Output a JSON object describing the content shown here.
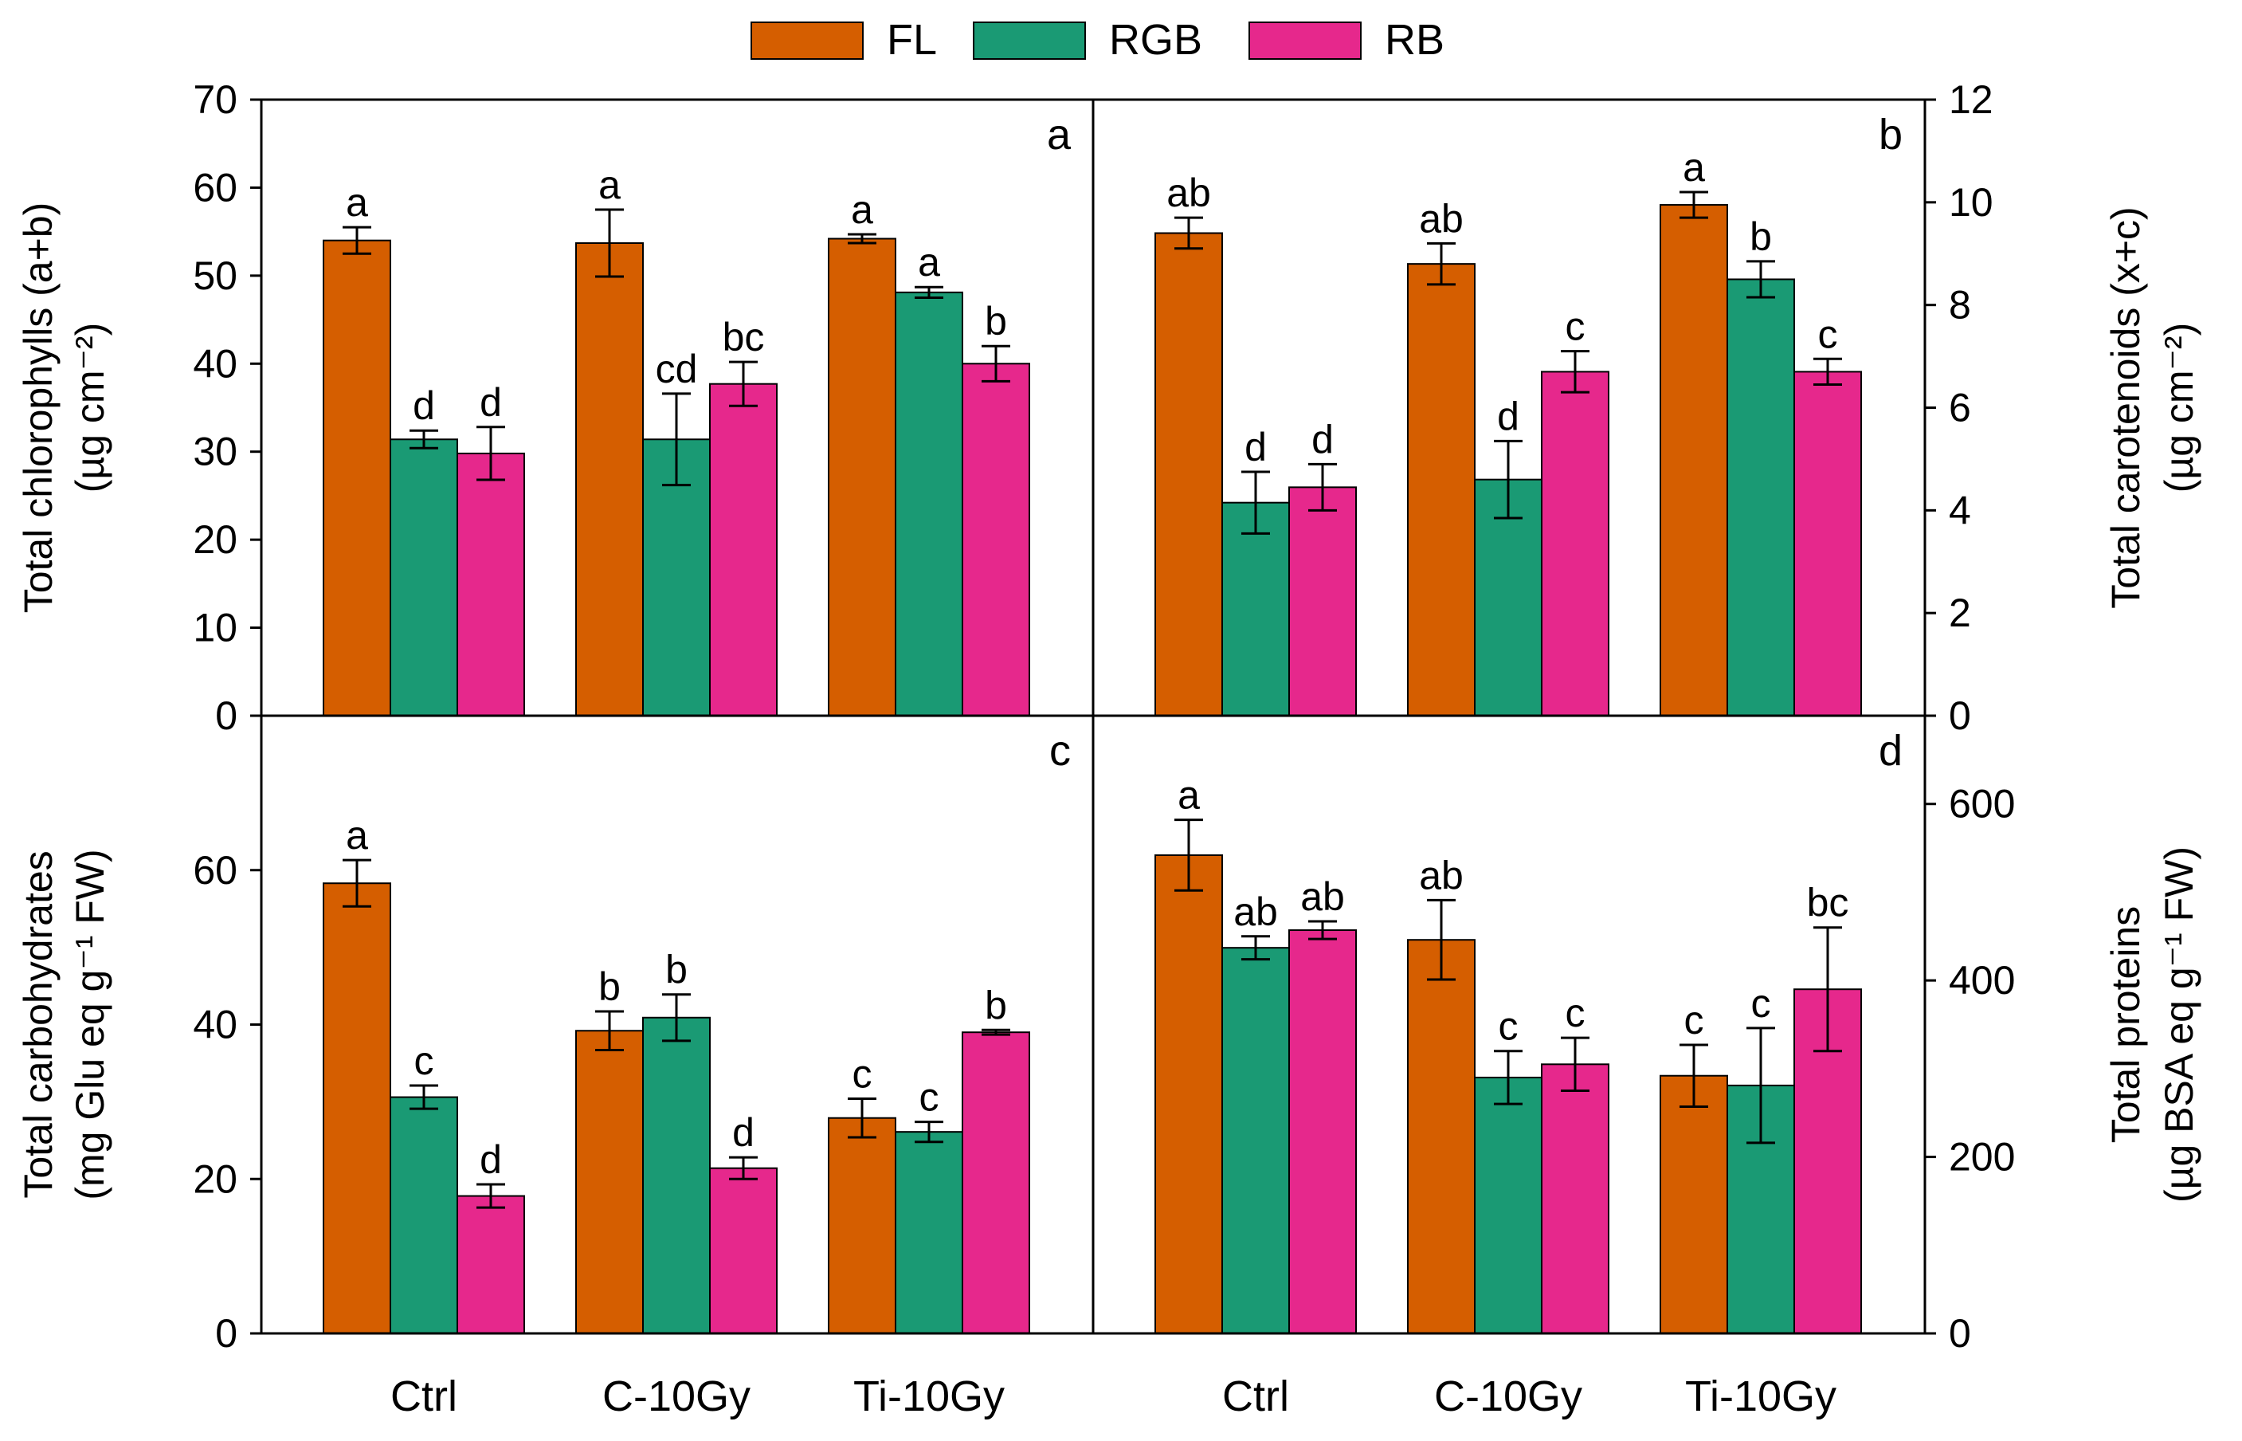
{
  "colors": {
    "FL": "#D55E00",
    "RGB": "#1A9A74",
    "RB": "#E6288C"
  },
  "legend": [
    {
      "key": "FL",
      "label": "FL",
      "color": "#D55E00"
    },
    {
      "key": "RGB",
      "label": "RGB",
      "color": "#1A9A74"
    },
    {
      "key": "RB",
      "label": "RB",
      "color": "#E6288C"
    }
  ],
  "categories": [
    "Ctrl",
    "C-10Gy",
    "Ti-10Gy"
  ],
  "chart_data": [
    {
      "type": "bar",
      "panel": "a",
      "title": "",
      "ylabel_line1": "Total chlorophylls (a+b)",
      "ylabel_line2": "(µg cm⁻²)",
      "ylim": [
        0,
        70
      ],
      "ticks": [
        "0",
        "10",
        "20",
        "30",
        "40",
        "50",
        "60",
        "70"
      ],
      "categories": [
        "Ctrl",
        "C-10Gy",
        "Ti-10Gy"
      ],
      "series": [
        {
          "name": "FL",
          "values": [
            54,
            53.7,
            54.2
          ],
          "errors": [
            1.5,
            3.8,
            0.5
          ],
          "letters": [
            "a",
            "a",
            "a"
          ]
        },
        {
          "name": "RGB",
          "values": [
            31.4,
            31.4,
            48.1
          ],
          "errors": [
            1.0,
            5.2,
            0.6
          ],
          "letters": [
            "d",
            "cd",
            "a"
          ]
        },
        {
          "name": "RB",
          "values": [
            29.8,
            37.7,
            40.0
          ],
          "errors": [
            3.0,
            2.5,
            2.0
          ],
          "letters": [
            "d",
            "bc",
            "b"
          ]
        }
      ]
    },
    {
      "type": "bar",
      "panel": "b",
      "title": "",
      "ylabel_line1": "Total carotenoids (x+c)",
      "ylabel_line2": "(µg cm⁻²)",
      "ylim": [
        0,
        12
      ],
      "ticks": [
        "0",
        "2",
        "4",
        "6",
        "8",
        "10",
        "12"
      ],
      "categories": [
        "Ctrl",
        "C-10Gy",
        "Ti-10Gy"
      ],
      "series": [
        {
          "name": "FL",
          "values": [
            9.4,
            8.8,
            9.95
          ],
          "errors": [
            0.3,
            0.4,
            0.25
          ],
          "letters": [
            "ab",
            "ab",
            "a"
          ]
        },
        {
          "name": "RGB",
          "values": [
            4.15,
            4.6,
            8.5
          ],
          "errors": [
            0.6,
            0.75,
            0.35
          ],
          "letters": [
            "d",
            "d",
            "b"
          ]
        },
        {
          "name": "RB",
          "values": [
            4.45,
            6.7,
            6.7
          ],
          "errors": [
            0.45,
            0.4,
            0.25
          ],
          "letters": [
            "d",
            "c",
            "c"
          ]
        }
      ]
    },
    {
      "type": "bar",
      "panel": "c",
      "title": "",
      "ylabel_line1": "Total carbohydrates",
      "ylabel_line2": "(mg Glu eq g⁻¹ FW)",
      "ylim": [
        0,
        80
      ],
      "ticks": [
        "0",
        "20",
        "40",
        "60"
      ],
      "categories": [
        "Ctrl",
        "C-10Gy",
        "Ti-10Gy"
      ],
      "series": [
        {
          "name": "FL",
          "values": [
            58.3,
            39.2,
            27.9
          ],
          "errors": [
            3.0,
            2.5,
            2.5
          ],
          "letters": [
            "a",
            "b",
            "c"
          ]
        },
        {
          "name": "RGB",
          "values": [
            30.6,
            40.9,
            26.1
          ],
          "errors": [
            1.5,
            3.0,
            1.3
          ],
          "letters": [
            "c",
            "b",
            "c"
          ]
        },
        {
          "name": "RB",
          "values": [
            17.8,
            21.4,
            39.0
          ],
          "errors": [
            1.5,
            1.4,
            0.3
          ],
          "letters": [
            "d",
            "d",
            "b"
          ]
        }
      ]
    },
    {
      "type": "bar",
      "panel": "d",
      "title": "",
      "ylabel_line1": "Total proteins",
      "ylabel_line2": "(µg BSA eq g⁻¹ FW)",
      "ylim": [
        0,
        700
      ],
      "ticks": [
        "0",
        "200",
        "400",
        "600"
      ],
      "categories": [
        "Ctrl",
        "C-10Gy",
        "Ti-10Gy"
      ],
      "series": [
        {
          "name": "FL",
          "values": [
            542,
            446,
            292
          ],
          "errors": [
            40,
            45,
            35
          ],
          "letters": [
            "a",
            "ab",
            "c"
          ]
        },
        {
          "name": "RGB",
          "values": [
            437,
            290,
            281
          ],
          "errors": [
            13,
            30,
            65
          ],
          "letters": [
            "ab",
            "c",
            "c"
          ]
        },
        {
          "name": "RB",
          "values": [
            457,
            305,
            390
          ],
          "errors": [
            10,
            30,
            70
          ],
          "letters": [
            "ab",
            "c",
            "bc"
          ]
        }
      ]
    }
  ]
}
